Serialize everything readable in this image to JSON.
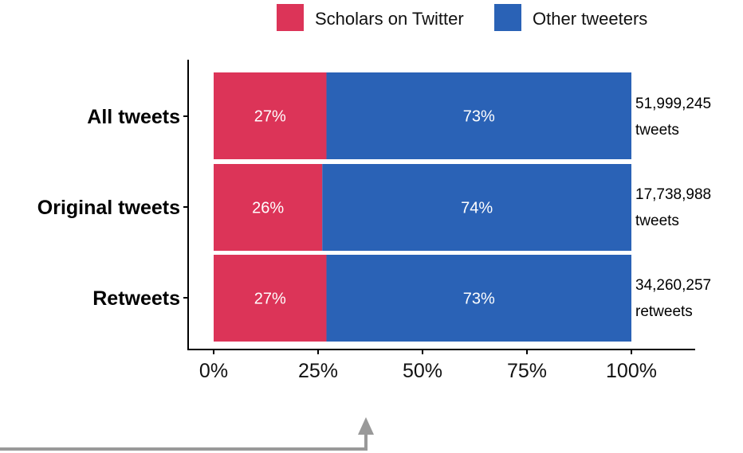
{
  "chart_data": {
    "type": "bar",
    "orientation": "horizontal",
    "stacked": true,
    "categories": [
      "All tweets",
      "Original tweets",
      "Retweets"
    ],
    "series": [
      {
        "name": "Scholars on Twitter",
        "color": "#DC3458",
        "values": [
          27,
          26,
          27
        ]
      },
      {
        "name": "Other tweeters",
        "color": "#2A62B6",
        "values": [
          73,
          74,
          73
        ]
      }
    ],
    "totals": [
      {
        "count": "51,999,245",
        "unit": "tweets"
      },
      {
        "count": "17,738,988",
        "unit": "tweets"
      },
      {
        "count": "34,260,257",
        "unit": "retweets"
      }
    ],
    "x_ticks": [
      "0%",
      "25%",
      "50%",
      "75%",
      "100%"
    ],
    "x_tick_values": [
      0,
      25,
      50,
      75,
      100
    ],
    "xlim": [
      0,
      100
    ],
    "legend_position": "top-right",
    "grid": false,
    "annotation_arrow_color": "#999999"
  }
}
